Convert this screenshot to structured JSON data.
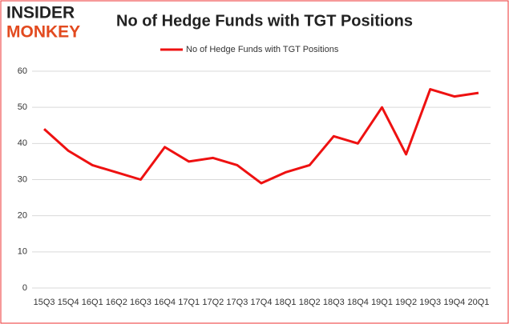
{
  "logo": {
    "top": "INSIDER",
    "bottom": "MONKEY"
  },
  "chart_data": {
    "type": "line",
    "title": "No of Hedge Funds with TGT Positions",
    "categories": [
      "15Q3",
      "15Q4",
      "16Q1",
      "16Q2",
      "16Q3",
      "16Q4",
      "17Q1",
      "17Q2",
      "17Q3",
      "17Q4",
      "18Q1",
      "18Q2",
      "18Q3",
      "18Q4",
      "19Q1",
      "19Q2",
      "19Q3",
      "19Q4",
      "20Q1"
    ],
    "series": [
      {
        "name": "No of Hedge Funds with TGT Positions",
        "color": "#ee1111",
        "values": [
          44,
          38,
          34,
          32,
          30,
          39,
          35,
          36,
          34,
          29,
          32,
          34,
          42,
          40,
          50,
          37,
          55,
          53,
          54
        ]
      }
    ],
    "ylim": [
      0,
      60
    ],
    "yticks": [
      0,
      10,
      20,
      30,
      40,
      50,
      60
    ],
    "grid": true,
    "legend": "top"
  }
}
